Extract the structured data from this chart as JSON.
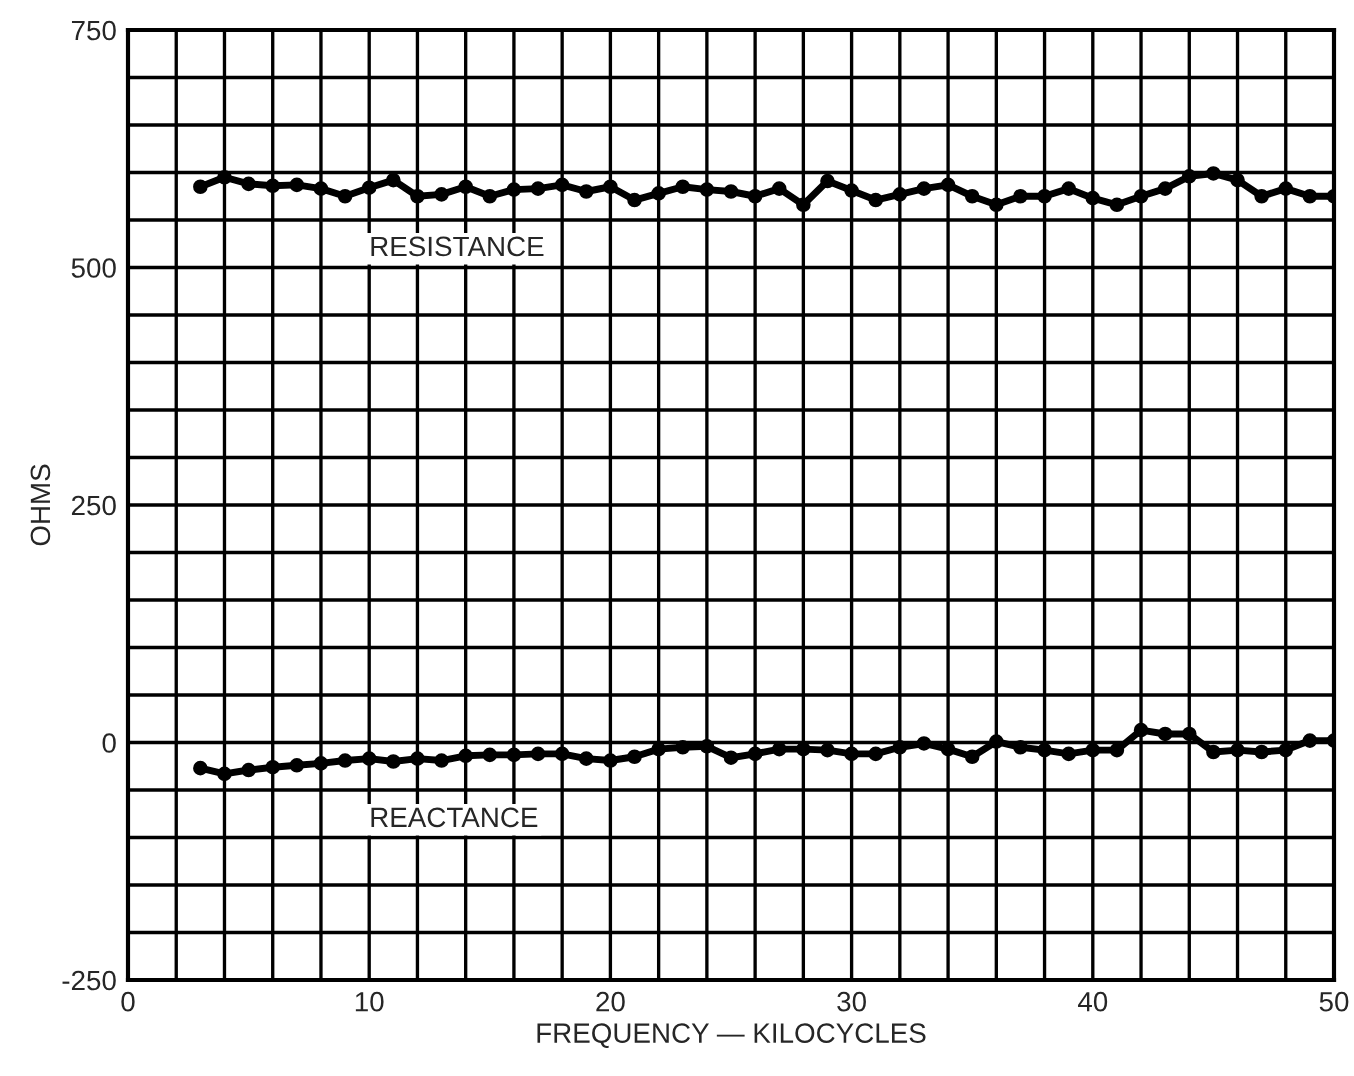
{
  "chart_data": {
    "type": "line",
    "xlabel": "FREQUENCY — KILOCYCLES",
    "ylabel": "OHMS",
    "x": [
      3,
      4,
      5,
      6,
      7,
      8,
      9,
      10,
      11,
      12,
      13,
      14,
      15,
      16,
      17,
      18,
      19,
      20,
      21,
      22,
      23,
      24,
      25,
      26,
      27,
      28,
      29,
      30,
      31,
      32,
      33,
      34,
      35,
      36,
      37,
      38,
      39,
      40,
      41,
      42,
      43,
      44,
      45,
      46,
      47,
      48,
      49,
      50
    ],
    "series": [
      {
        "name": "RESISTANCE",
        "color": "#000000",
        "values": [
          585,
          595,
          588,
          586,
          587,
          583,
          575,
          584,
          592,
          575,
          577,
          585,
          575,
          582,
          583,
          587,
          580,
          585,
          571,
          578,
          585,
          582,
          580,
          575,
          583,
          566,
          591,
          581,
          571,
          577,
          583,
          587,
          575,
          566,
          575,
          575,
          583,
          573,
          566,
          575,
          583,
          596,
          599,
          592,
          575,
          583,
          575,
          575
        ]
      },
      {
        "name": "REACTANCE",
        "color": "#000000",
        "values": [
          -27,
          -33,
          -29,
          -26,
          -24,
          -22,
          -19,
          -17,
          -20,
          -17,
          -19,
          -14,
          -13,
          -13,
          -12,
          -12,
          -17,
          -19,
          -15,
          -7,
          -5,
          -4,
          -16,
          -12,
          -7,
          -7,
          -8,
          -12,
          -12,
          -5,
          -1,
          -7,
          -15,
          1,
          -5,
          -8,
          -12,
          -8,
          -8,
          13,
          9,
          9,
          -10,
          -8,
          -10,
          -8,
          2,
          2
        ]
      }
    ],
    "xlim": [
      0,
      50
    ],
    "ylim": [
      -250,
      750
    ],
    "xticks": [
      0,
      {
        "value": 2,
        "label": null
      },
      {
        "value": 4,
        "label": null
      },
      {
        "value": 6,
        "label": null
      },
      {
        "value": 8,
        "label": null
      },
      10,
      {
        "value": 12,
        "label": null
      },
      {
        "value": 14,
        "label": null
      },
      {
        "value": 16,
        "label": null
      },
      {
        "value": 18,
        "label": null
      },
      20,
      {
        "value": 22,
        "label": null
      },
      {
        "value": 24,
        "label": null
      },
      {
        "value": 26,
        "label": null
      },
      {
        "value": 28,
        "label": null
      },
      30,
      {
        "value": 32,
        "label": null
      },
      {
        "value": 34,
        "label": null
      },
      {
        "value": 36,
        "label": null
      },
      {
        "value": 38,
        "label": null
      },
      40,
      {
        "value": 42,
        "label": null
      },
      {
        "value": 44,
        "label": null
      },
      {
        "value": 46,
        "label": null
      },
      {
        "value": 48,
        "label": null
      },
      50
    ],
    "yticks": [
      -250,
      {
        "value": -200,
        "label": null
      },
      {
        "value": -150,
        "label": null
      },
      {
        "value": -100,
        "label": null
      },
      {
        "value": -50,
        "label": null
      },
      0,
      {
        "value": 50,
        "label": null
      },
      {
        "value": 100,
        "label": null
      },
      {
        "value": 150,
        "label": null
      },
      {
        "value": 200,
        "label": null
      },
      250,
      {
        "value": 300,
        "label": null
      },
      {
        "value": 350,
        "label": null
      },
      {
        "value": 400,
        "label": null
      },
      {
        "value": 450,
        "label": null
      },
      500,
      {
        "value": 550,
        "label": null
      },
      {
        "value": 600,
        "label": null
      },
      {
        "value": 650,
        "label": null
      },
      {
        "value": 700,
        "label": null
      },
      750
    ],
    "grid": true,
    "legend": false,
    "marker": "circle",
    "line_style": "solid"
  }
}
